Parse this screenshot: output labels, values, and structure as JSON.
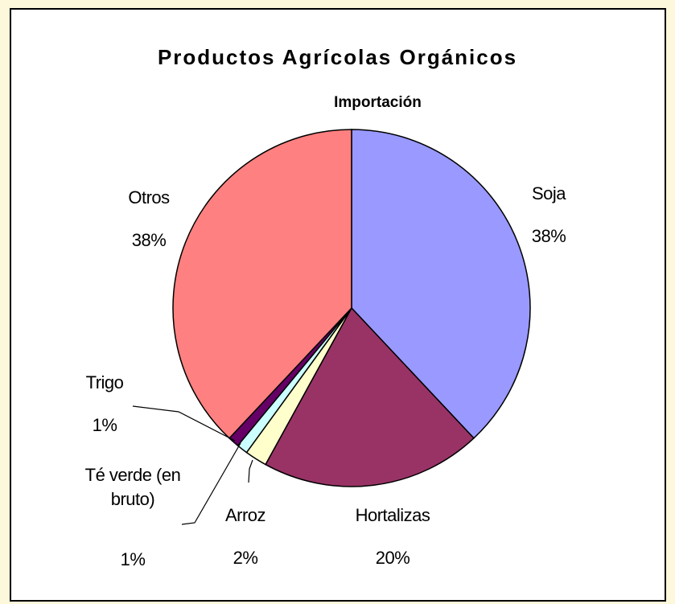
{
  "chart_data": {
    "type": "pie",
    "title": "Productos Agrícolas Orgánicos",
    "subtitle": "Importación",
    "categories": [
      "Soja",
      "Hortalizas",
      "Arroz",
      "Té verde (en bruto)",
      "Trigo",
      "Otros"
    ],
    "values": [
      38,
      20,
      2,
      1,
      1,
      38
    ],
    "value_labels": [
      "38%",
      "20%",
      "2%",
      "1%",
      "1%",
      "38%"
    ],
    "colors": [
      "#9999ff",
      "#993366",
      "#ffffcc",
      "#ccffff",
      "#660066",
      "#ff8080"
    ]
  }
}
